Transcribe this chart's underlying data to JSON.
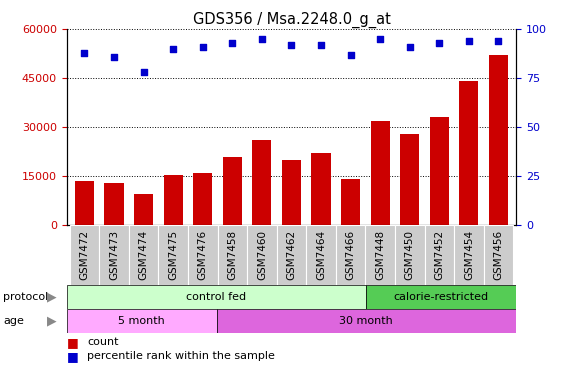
{
  "title": "GDS356 / Msa.2248.0_g_at",
  "samples": [
    "GSM7472",
    "GSM7473",
    "GSM7474",
    "GSM7475",
    "GSM7476",
    "GSM7458",
    "GSM7460",
    "GSM7462",
    "GSM7464",
    "GSM7466",
    "GSM7448",
    "GSM7450",
    "GSM7452",
    "GSM7454",
    "GSM7456"
  ],
  "counts": [
    13500,
    12800,
    9500,
    15200,
    16000,
    21000,
    26000,
    20000,
    22000,
    14000,
    32000,
    28000,
    33000,
    44000,
    52000
  ],
  "percentiles": [
    88,
    86,
    78,
    90,
    91,
    93,
    95,
    92,
    92,
    87,
    95,
    91,
    93,
    94,
    94
  ],
  "bar_color": "#cc0000",
  "dot_color": "#0000cc",
  "ylim_left": [
    0,
    60000
  ],
  "ylim_right": [
    0,
    100
  ],
  "yticks_left": [
    0,
    15000,
    30000,
    45000,
    60000
  ],
  "yticks_right": [
    0,
    25,
    50,
    75,
    100
  ],
  "protocol_labels": [
    {
      "label": "control fed",
      "start": 0,
      "end": 10,
      "color": "#ccffcc"
    },
    {
      "label": "calorie-restricted",
      "start": 10,
      "end": 15,
      "color": "#55cc55"
    }
  ],
  "age_labels": [
    {
      "label": "5 month",
      "start": 0,
      "end": 5,
      "color": "#ffaaff"
    },
    {
      "label": "30 month",
      "start": 5,
      "end": 15,
      "color": "#dd66dd"
    }
  ],
  "xtick_bg": "#cccccc",
  "legend_count_color": "#cc0000",
  "legend_dot_color": "#0000cc"
}
